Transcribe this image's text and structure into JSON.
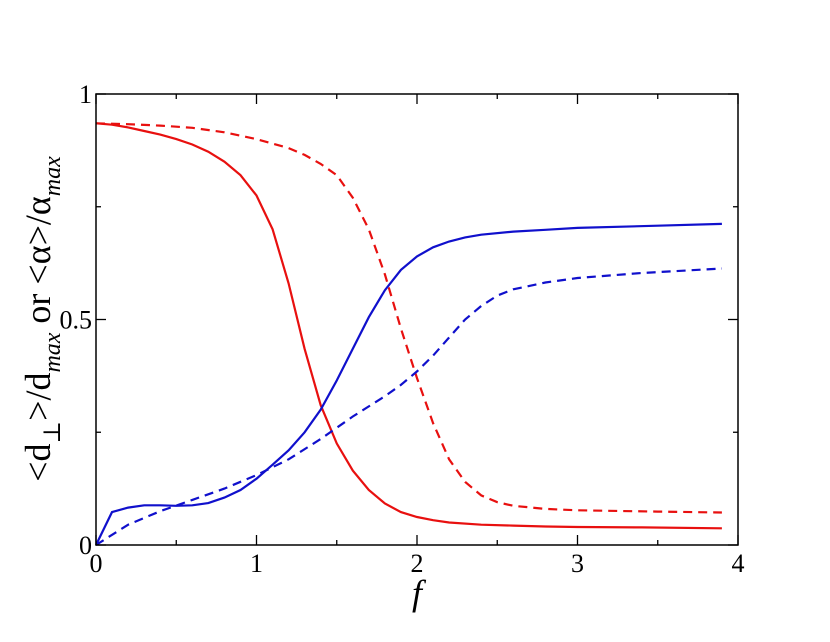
{
  "chart_data": {
    "type": "line",
    "xlabel": "f",
    "ylabel": {
      "d_part": "<d",
      "perp": "⊥",
      "mid": ">/d",
      "max1": "max",
      "or": " or <α>/α",
      "max2": "max"
    },
    "xlim": [
      0,
      4
    ],
    "ylim": [
      0,
      1
    ],
    "x_ticks": [
      {
        "value": 0,
        "label": "0"
      },
      {
        "value": 1,
        "label": "1"
      },
      {
        "value": 2,
        "label": "2"
      },
      {
        "value": 3,
        "label": "3"
      },
      {
        "value": 4,
        "label": "4"
      }
    ],
    "y_ticks": [
      {
        "value": 0,
        "label": "0"
      },
      {
        "value": 0.5,
        "label": "0.5"
      },
      {
        "value": 1,
        "label": "1"
      }
    ],
    "series": [
      {
        "color": "#e8100f",
        "dash": "solid",
        "points": [
          [
            0,
            0.935
          ],
          [
            0.1,
            0.932
          ],
          [
            0.2,
            0.926
          ],
          [
            0.3,
            0.918
          ],
          [
            0.4,
            0.91
          ],
          [
            0.5,
            0.9
          ],
          [
            0.6,
            0.888
          ],
          [
            0.7,
            0.872
          ],
          [
            0.8,
            0.85
          ],
          [
            0.9,
            0.82
          ],
          [
            1.0,
            0.775
          ],
          [
            1.1,
            0.7
          ],
          [
            1.2,
            0.58
          ],
          [
            1.3,
            0.435
          ],
          [
            1.4,
            0.31
          ],
          [
            1.5,
            0.225
          ],
          [
            1.6,
            0.165
          ],
          [
            1.7,
            0.122
          ],
          [
            1.8,
            0.092
          ],
          [
            1.9,
            0.073
          ],
          [
            2.0,
            0.062
          ],
          [
            2.1,
            0.055
          ],
          [
            2.2,
            0.05
          ],
          [
            2.4,
            0.045
          ],
          [
            2.6,
            0.043
          ],
          [
            2.8,
            0.041
          ],
          [
            3.0,
            0.04
          ],
          [
            3.4,
            0.039
          ],
          [
            3.9,
            0.037
          ]
        ]
      },
      {
        "color": "#e8100f",
        "dash": "dashed",
        "points": [
          [
            0,
            0.935
          ],
          [
            0.2,
            0.933
          ],
          [
            0.4,
            0.93
          ],
          [
            0.6,
            0.925
          ],
          [
            0.8,
            0.915
          ],
          [
            1.0,
            0.9
          ],
          [
            1.2,
            0.88
          ],
          [
            1.3,
            0.865
          ],
          [
            1.4,
            0.845
          ],
          [
            1.5,
            0.82
          ],
          [
            1.6,
            0.77
          ],
          [
            1.7,
            0.7
          ],
          [
            1.8,
            0.6
          ],
          [
            1.9,
            0.48
          ],
          [
            2.0,
            0.37
          ],
          [
            2.1,
            0.27
          ],
          [
            2.2,
            0.19
          ],
          [
            2.3,
            0.14
          ],
          [
            2.4,
            0.11
          ],
          [
            2.5,
            0.095
          ],
          [
            2.6,
            0.087
          ],
          [
            2.8,
            0.08
          ],
          [
            3.0,
            0.077
          ],
          [
            3.5,
            0.074
          ],
          [
            3.9,
            0.072
          ]
        ]
      },
      {
        "color": "#1010cc",
        "dash": "solid",
        "points": [
          [
            0,
            0.0
          ],
          [
            0.1,
            0.073
          ],
          [
            0.2,
            0.083
          ],
          [
            0.3,
            0.088
          ],
          [
            0.4,
            0.088
          ],
          [
            0.5,
            0.087
          ],
          [
            0.6,
            0.088
          ],
          [
            0.7,
            0.093
          ],
          [
            0.8,
            0.105
          ],
          [
            0.9,
            0.122
          ],
          [
            1.0,
            0.147
          ],
          [
            1.1,
            0.178
          ],
          [
            1.2,
            0.21
          ],
          [
            1.3,
            0.25
          ],
          [
            1.4,
            0.3
          ],
          [
            1.5,
            0.365
          ],
          [
            1.6,
            0.435
          ],
          [
            1.7,
            0.505
          ],
          [
            1.8,
            0.565
          ],
          [
            1.9,
            0.61
          ],
          [
            2.0,
            0.64
          ],
          [
            2.1,
            0.66
          ],
          [
            2.2,
            0.673
          ],
          [
            2.3,
            0.682
          ],
          [
            2.4,
            0.688
          ],
          [
            2.6,
            0.695
          ],
          [
            2.8,
            0.699
          ],
          [
            3.0,
            0.703
          ],
          [
            3.5,
            0.708
          ],
          [
            3.9,
            0.712
          ]
        ]
      },
      {
        "color": "#1010cc",
        "dash": "dashed",
        "points": [
          [
            0,
            0.0
          ],
          [
            0.2,
            0.045
          ],
          [
            0.4,
            0.075
          ],
          [
            0.6,
            0.1
          ],
          [
            0.8,
            0.125
          ],
          [
            1.0,
            0.155
          ],
          [
            1.2,
            0.19
          ],
          [
            1.4,
            0.235
          ],
          [
            1.6,
            0.285
          ],
          [
            1.8,
            0.33
          ],
          [
            1.9,
            0.355
          ],
          [
            2.0,
            0.385
          ],
          [
            2.1,
            0.42
          ],
          [
            2.2,
            0.46
          ],
          [
            2.3,
            0.5
          ],
          [
            2.4,
            0.53
          ],
          [
            2.5,
            0.553
          ],
          [
            2.6,
            0.567
          ],
          [
            2.8,
            0.582
          ],
          [
            3.0,
            0.592
          ],
          [
            3.4,
            0.603
          ],
          [
            3.9,
            0.613
          ]
        ]
      }
    ]
  }
}
